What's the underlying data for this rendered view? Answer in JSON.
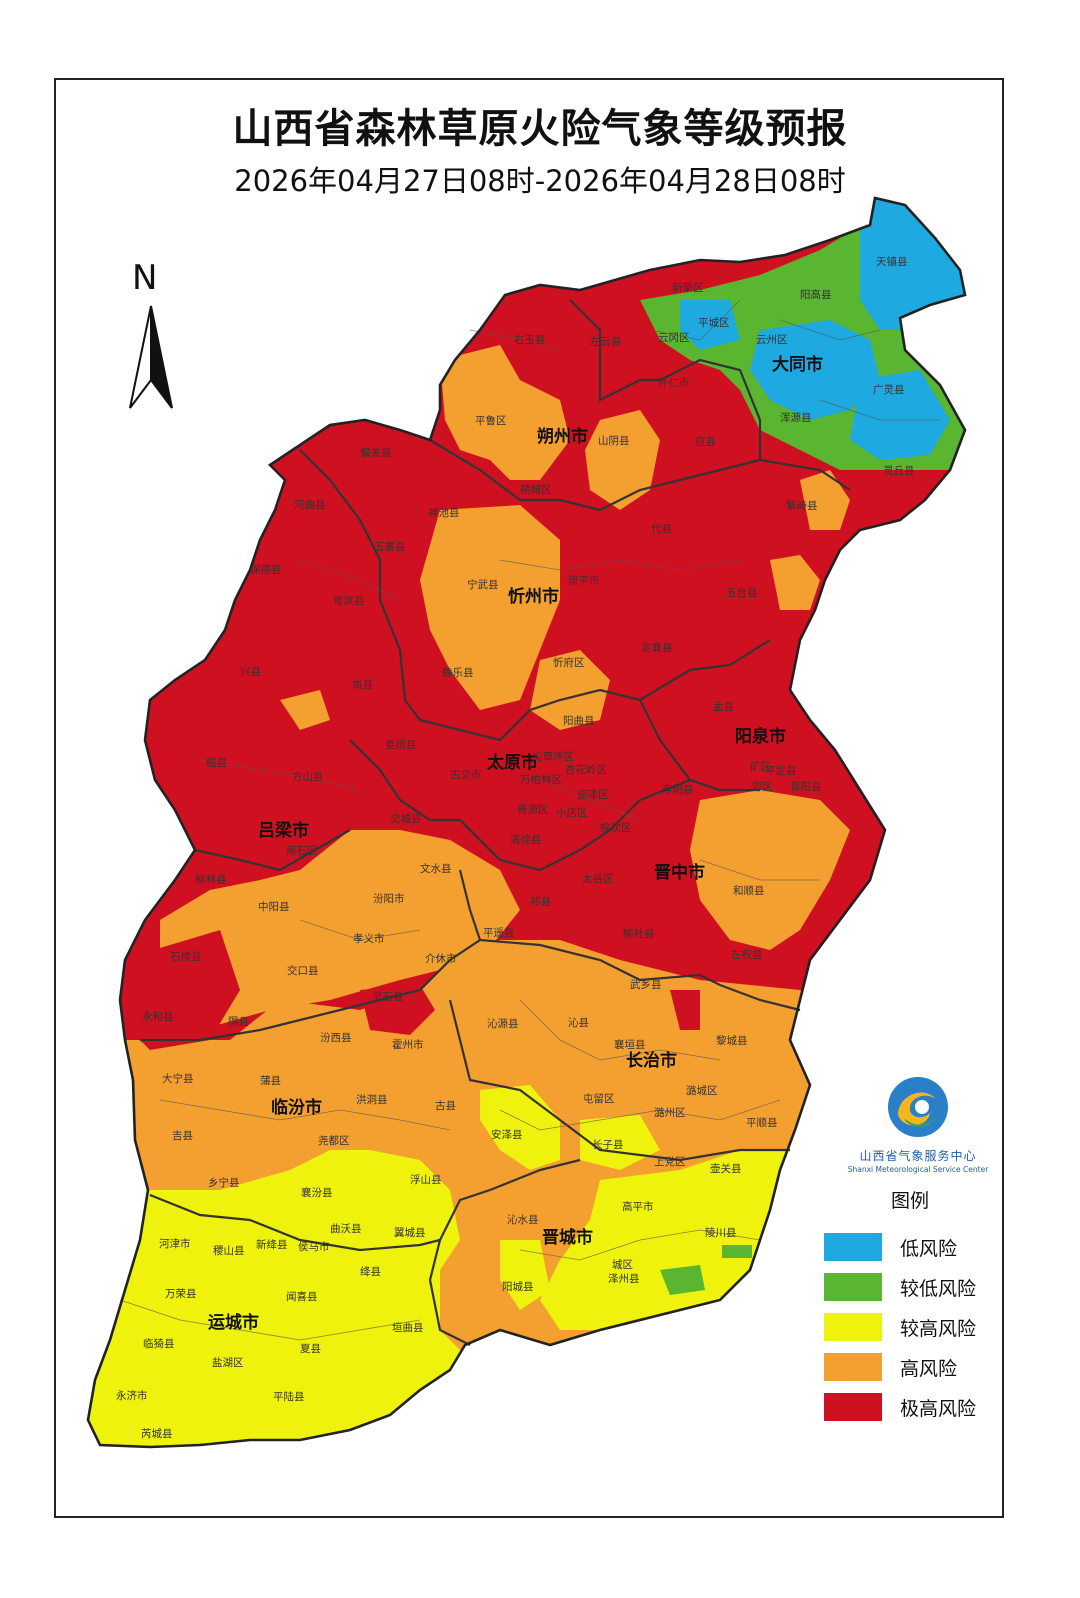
{
  "title": "山西省森林草原火险气象等级预报",
  "subtitle": "2026年04月27日08时-2026年04月28日08时",
  "north_label": "N",
  "logo": {
    "name_cn": "山西省气象服务中心",
    "name_en": "Shanxi Meteorological Service Center"
  },
  "legend": {
    "title": "图例",
    "items": [
      {
        "label": "低风险",
        "color": "#1fa9e1"
      },
      {
        "label": "较低风险",
        "color": "#5ab530"
      },
      {
        "label": "较高风险",
        "color": "#eef20c"
      },
      {
        "label": "高风险",
        "color": "#f4a031"
      },
      {
        "label": "极高风险",
        "color": "#cf1020"
      }
    ]
  },
  "cities": {
    "datong": "大同市",
    "shuozhou": "朔州市",
    "xinzhou": "忻州市",
    "taiyuan": "太原市",
    "yangquan": "阳泉市",
    "lvliang": "吕梁市",
    "jinzhong": "晋中市",
    "changzhi": "长治市",
    "linfen": "临汾市",
    "jincheng": "晋城市",
    "yuncheng": "运城市"
  },
  "counties": {
    "tianzhen": "天镇县",
    "xinrong": "新荣区",
    "yanggao": "阳高县",
    "pingcheng": "平城区",
    "yungang": "云冈区",
    "yunzhou": "云州区",
    "zuoyun": "左云县",
    "youyu": "右玉县",
    "guangling": "广灵县",
    "huairen": "怀仁市",
    "hunyuan": "浑源县",
    "pinglu_sz": "平鲁区",
    "shanyin": "山阴县",
    "yingxian": "应县",
    "lingqiu": "灵丘县",
    "pianguan": "偏关县",
    "shuocheng": "朔城区",
    "shenchi": "神池县",
    "fanshi": "繁峙县",
    "hequ": "河曲县",
    "wuzhai": "五寨县",
    "daixian": "代县",
    "ningwu": "宁武县",
    "baode": "保德县",
    "yuanping": "原平市",
    "wutai": "五台县",
    "kelan": "岢岚县",
    "xinfu": "忻府区",
    "jingle": "静乐县",
    "dingxiang": "定襄县",
    "xingxian": "兴县",
    "lanxian": "岚县",
    "yangqu": "阳曲县",
    "yuxian": "盂县",
    "loufan": "娄烦县",
    "jiancaoping": "尖草坪区",
    "gujiao": "古交市",
    "wanbolin": "万柏林区",
    "xinghualing": "杏花岭区",
    "pingding": "平定县",
    "linxian": "临县",
    "fangshan": "方山县",
    "jiaocheng": "交城县",
    "jinyuan": "晋源区",
    "yingze": "迎泽区",
    "xiaodian": "小店区",
    "kuang": "矿区",
    "yuxiang": "郊区",
    "qingxu": "清徐县",
    "shouyang": "寿阳县",
    "yuci": "榆次区",
    "xiyang": "昔阳县",
    "lishi": "离石区",
    "wenshui": "文水县",
    "liulin": "柳林县",
    "zhongyang": "中阳县",
    "taigu": "太谷区",
    "heshun": "和顺县",
    "fenyang": "汾阳市",
    "qixian": "祁县",
    "pingyao": "平遥县",
    "yushe": "榆社县",
    "shilou": "石楼县",
    "xiaoyi": "孝义市",
    "jiexiu": "介休市",
    "zuoquan": "左权县",
    "jiaokou": "交口县",
    "lingshi": "灵石县",
    "wuxiang": "武乡县",
    "yonghe": "永和县",
    "xixian": "隰县",
    "fenxi": "汾西县",
    "qinyuan": "沁源县",
    "qinxian": "沁县",
    "huozhou": "霍州市",
    "xiangyuan": "襄垣县",
    "licheng": "黎城县",
    "daning": "大宁县",
    "puxian": "蒲县",
    "hongdong": "洪洞县",
    "guxian": "古县",
    "tunliu": "屯留区",
    "lucheng": "潞城区",
    "anze": "安泽县",
    "luzhou": "潞州区",
    "pingshun": "平顺县",
    "jixian": "吉县",
    "yaodu": "尧都区",
    "zhangzi": "长子县",
    "shangdang": "上党区",
    "huguan": "壶关县",
    "xiangning": "乡宁县",
    "xiangfen": "襄汾县",
    "fushan": "浮山县",
    "gaoping": "高平市",
    "qinshui": "沁水县",
    "hejin": "河津市",
    "jishan": "稷山县",
    "xinjiang": "新绛县",
    "houma": "侯马市",
    "quwo": "曲沃县",
    "yicheng": "翼城县",
    "lingchuan": "陵川县",
    "jiangxian": "绛县",
    "chengqu": "城区",
    "zezhou": "泽州县",
    "wanrong": "万荣县",
    "wenxi": "闻喜县",
    "yangcheng": "阳城县",
    "linyi": "临猗县",
    "yuanqu": "垣曲县",
    "xiaxian": "夏县",
    "yanhu": "盐湖区",
    "yongji": "永济市",
    "pinglu_yc": "平陆县",
    "ruicheng": "芮城县"
  }
}
